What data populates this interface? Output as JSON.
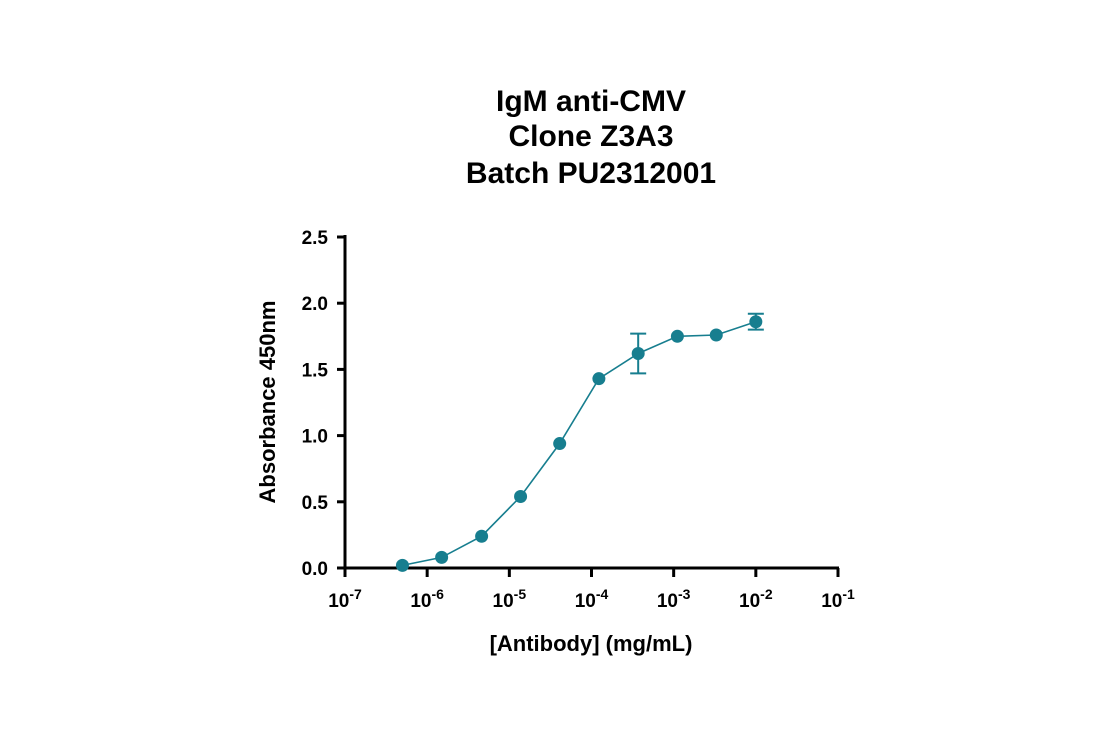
{
  "chart_data": {
    "type": "line",
    "title": [
      "IgM anti-CMV",
      "Clone Z3A3",
      "Batch PU2312001"
    ],
    "xlabel": "[Antibody] (mg/mL)",
    "ylabel": "Absorbance 450nm",
    "xscale": "log",
    "xlim": [
      1e-07,
      0.1
    ],
    "ylim": [
      0,
      2.5
    ],
    "xticks": [
      {
        "value": 1e-07,
        "base": "10",
        "exp": "-7"
      },
      {
        "value": 1e-06,
        "base": "10",
        "exp": "-6"
      },
      {
        "value": 1e-05,
        "base": "10",
        "exp": "-5"
      },
      {
        "value": 0.0001,
        "base": "10",
        "exp": "-4"
      },
      {
        "value": 0.001,
        "base": "10",
        "exp": "-3"
      },
      {
        "value": 0.01,
        "base": "10",
        "exp": "-2"
      },
      {
        "value": 0.1,
        "base": "10",
        "exp": "-1"
      }
    ],
    "yticks": [
      {
        "value": 0.0,
        "label": "0.0"
      },
      {
        "value": 0.5,
        "label": "0.5"
      },
      {
        "value": 1.0,
        "label": "1.0"
      },
      {
        "value": 1.5,
        "label": "1.5"
      },
      {
        "value": 2.0,
        "label": "2.0"
      },
      {
        "value": 2.5,
        "label": "2.5"
      }
    ],
    "grid": false,
    "series": [
      {
        "color": "#177e8f",
        "points": [
          {
            "x": 5e-07,
            "y": 0.02,
            "err": 0
          },
          {
            "x": 1.5e-06,
            "y": 0.08,
            "err": 0
          },
          {
            "x": 4.6e-06,
            "y": 0.24,
            "err": 0
          },
          {
            "x": 1.37e-05,
            "y": 0.54,
            "err": 0
          },
          {
            "x": 4.1e-05,
            "y": 0.94,
            "err": 0
          },
          {
            "x": 0.000123,
            "y": 1.43,
            "err": 0
          },
          {
            "x": 0.00037,
            "y": 1.62,
            "err": 0.15
          },
          {
            "x": 0.00111,
            "y": 1.75,
            "err": 0
          },
          {
            "x": 0.0033,
            "y": 1.76,
            "err": 0
          },
          {
            "x": 0.01,
            "y": 1.86,
            "err": 0.06
          }
        ]
      }
    ]
  }
}
